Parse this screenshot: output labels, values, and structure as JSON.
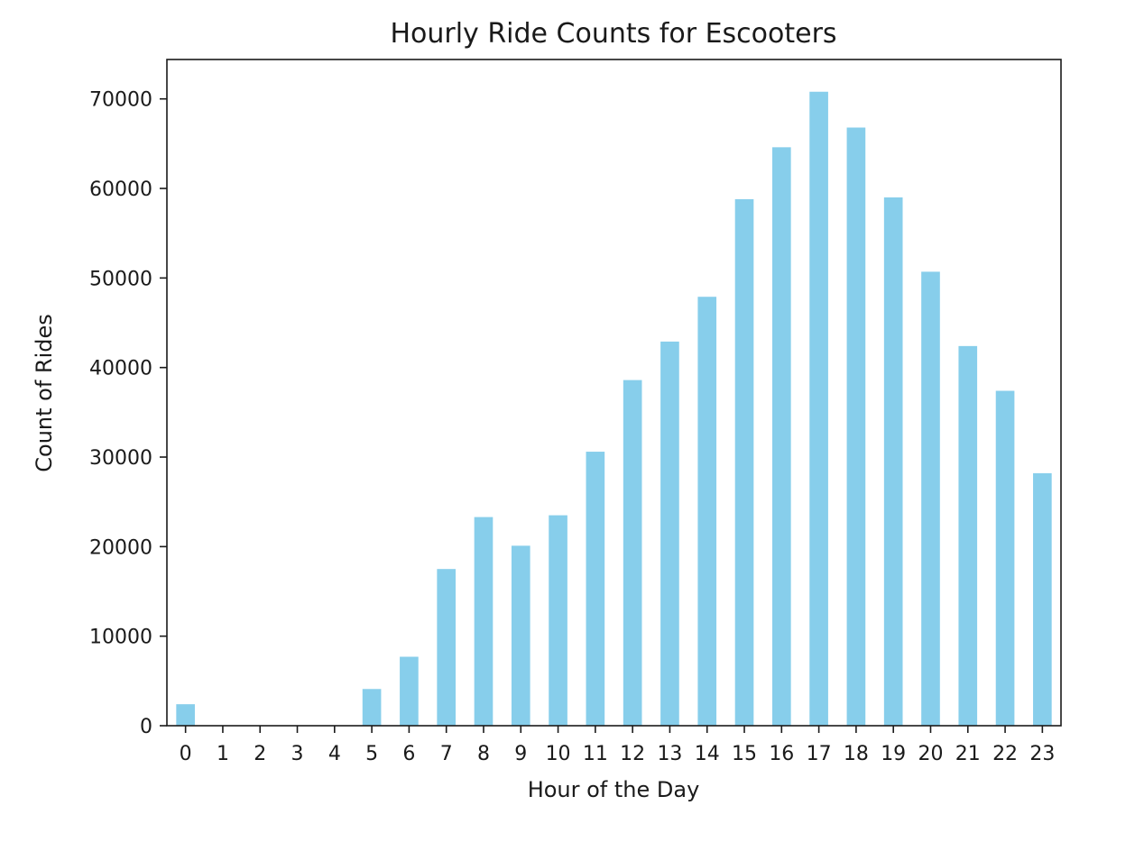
{
  "chart_data": {
    "type": "bar",
    "title": "Hourly Ride Counts for Escooters",
    "xlabel": "Hour of the Day",
    "ylabel": "Count of Rides",
    "categories": [
      "0",
      "1",
      "2",
      "3",
      "4",
      "5",
      "6",
      "7",
      "8",
      "9",
      "10",
      "11",
      "12",
      "13",
      "14",
      "15",
      "16",
      "17",
      "18",
      "19",
      "20",
      "21",
      "22",
      "23"
    ],
    "values": [
      2400,
      0,
      0,
      0,
      0,
      4100,
      7700,
      17500,
      23300,
      20100,
      23500,
      30600,
      38600,
      42900,
      47900,
      58800,
      64600,
      70800,
      66800,
      59000,
      50700,
      42400,
      37400,
      28200
    ],
    "yticks": [
      0,
      10000,
      20000,
      30000,
      40000,
      50000,
      60000,
      70000
    ],
    "ylim": [
      0,
      74400
    ],
    "bar_color": "#87ceeb",
    "grid": false,
    "legend": false
  }
}
